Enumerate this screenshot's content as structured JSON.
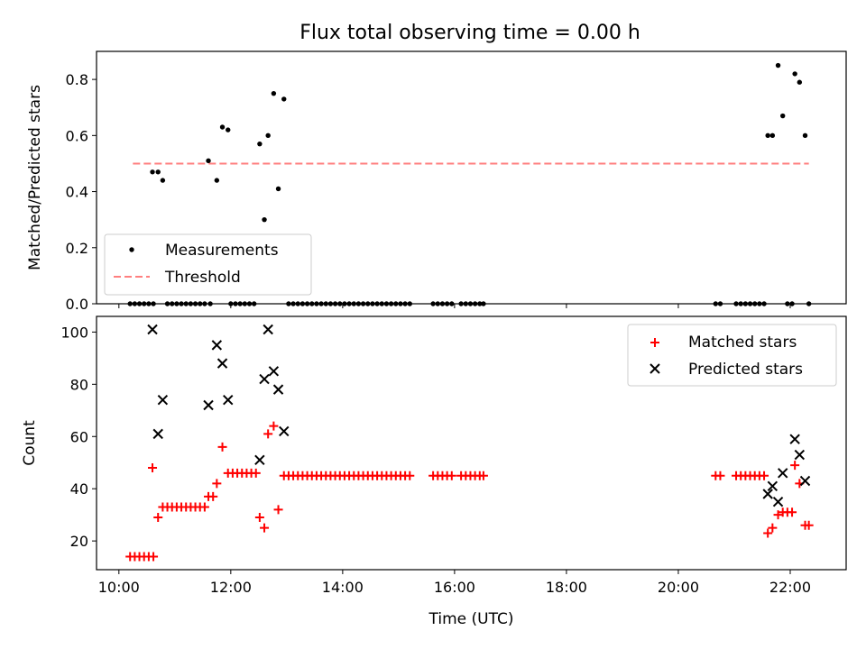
{
  "figure": {
    "title": "Flux total observing time = 0.00 h"
  },
  "chart_data": [
    {
      "type": "scatter",
      "ylabel": "Matched/Predicted stars",
      "xlim_hours": [
        9.6,
        23.0
      ],
      "ylim": [
        0,
        0.9
      ],
      "x_ticks": [
        "10:00",
        "12:00",
        "14:00",
        "16:00",
        "18:00",
        "20:00",
        "22:00"
      ],
      "y_ticks": [
        "0.0",
        "0.2",
        "0.4",
        "0.6",
        "0.8"
      ],
      "legend": {
        "position": "lower-left",
        "entries": [
          "Measurements",
          "Threshold"
        ]
      },
      "threshold": {
        "name": "Threshold",
        "value": 0.5,
        "x_range": [
          "10:15",
          "22:20"
        ],
        "color": "#ff7f7f"
      },
      "series": [
        {
          "name": "Measurements",
          "color": "#000000",
          "points": [
            [
              "10:12",
              0
            ],
            [
              "10:17",
              0
            ],
            [
              "10:22",
              0
            ],
            [
              "10:27",
              0
            ],
            [
              "10:32",
              0
            ],
            [
              "10:37",
              0
            ],
            [
              "10:36",
              0.47
            ],
            [
              "10:42",
              0.47
            ],
            [
              "10:47",
              0.44
            ],
            [
              "10:52",
              0
            ],
            [
              "10:57",
              0
            ],
            [
              "11:02",
              0
            ],
            [
              "11:07",
              0
            ],
            [
              "11:12",
              0
            ],
            [
              "11:17",
              0
            ],
            [
              "11:22",
              0
            ],
            [
              "11:27",
              0
            ],
            [
              "11:32",
              0
            ],
            [
              "11:36",
              0.51
            ],
            [
              "11:45",
              0.44
            ],
            [
              "11:51",
              0.63
            ],
            [
              "11:57",
              0.62
            ],
            [
              "11:38",
              0
            ],
            [
              "12:00",
              0
            ],
            [
              "12:05",
              0
            ],
            [
              "12:10",
              0
            ],
            [
              "12:15",
              0
            ],
            [
              "12:20",
              0
            ],
            [
              "12:25",
              0
            ],
            [
              "12:31",
              0.57
            ],
            [
              "12:36",
              0.3
            ],
            [
              "12:40",
              0.6
            ],
            [
              "12:46",
              0.75
            ],
            [
              "12:51",
              0.41
            ],
            [
              "12:57",
              0.73
            ],
            [
              "13:02",
              0
            ],
            [
              "13:07",
              0
            ],
            [
              "13:12",
              0
            ],
            [
              "13:17",
              0
            ],
            [
              "13:22",
              0
            ],
            [
              "13:27",
              0
            ],
            [
              "13:32",
              0
            ],
            [
              "13:37",
              0
            ],
            [
              "13:42",
              0
            ],
            [
              "13:47",
              0
            ],
            [
              "13:52",
              0
            ],
            [
              "13:57",
              0
            ],
            [
              "14:02",
              0
            ],
            [
              "14:07",
              0
            ],
            [
              "14:12",
              0
            ],
            [
              "14:17",
              0
            ],
            [
              "14:22",
              0
            ],
            [
              "14:27",
              0
            ],
            [
              "14:32",
              0
            ],
            [
              "14:37",
              0
            ],
            [
              "14:42",
              0
            ],
            [
              "14:47",
              0
            ],
            [
              "14:52",
              0
            ],
            [
              "14:57",
              0
            ],
            [
              "15:02",
              0
            ],
            [
              "15:07",
              0
            ],
            [
              "15:12",
              0
            ],
            [
              "15:37",
              0
            ],
            [
              "15:42",
              0
            ],
            [
              "15:47",
              0
            ],
            [
              "15:52",
              0
            ],
            [
              "15:57",
              0
            ],
            [
              "16:07",
              0
            ],
            [
              "16:12",
              0
            ],
            [
              "16:17",
              0
            ],
            [
              "16:22",
              0
            ],
            [
              "16:27",
              0
            ],
            [
              "16:31",
              0
            ],
            [
              "20:40",
              0
            ],
            [
              "20:45",
              0
            ],
            [
              "21:02",
              0
            ],
            [
              "21:07",
              0
            ],
            [
              "21:12",
              0
            ],
            [
              "21:17",
              0
            ],
            [
              "21:22",
              0
            ],
            [
              "21:27",
              0
            ],
            [
              "21:32",
              0
            ],
            [
              "21:36",
              0.6
            ],
            [
              "21:41",
              0.6
            ],
            [
              "21:47",
              0.85
            ],
            [
              "21:52",
              0.67
            ],
            [
              "21:57",
              0
            ],
            [
              "22:02",
              0
            ],
            [
              "22:05",
              0.82
            ],
            [
              "22:10",
              0.79
            ],
            [
              "22:16",
              0.6
            ],
            [
              "22:20",
              0
            ]
          ]
        }
      ]
    },
    {
      "type": "scatter",
      "xlabel": "Time (UTC)",
      "ylabel": "Count",
      "xlim_hours": [
        9.6,
        23.0
      ],
      "ylim": [
        9,
        106
      ],
      "x_ticks": [
        "10:00",
        "12:00",
        "14:00",
        "16:00",
        "18:00",
        "20:00",
        "22:00"
      ],
      "y_ticks": [
        "20",
        "40",
        "60",
        "80",
        "100"
      ],
      "legend": {
        "position": "top-right",
        "entries": [
          "Matched stars",
          "Predicted stars"
        ]
      },
      "series": [
        {
          "name": "Matched stars",
          "marker": "plus",
          "color": "#ff0000",
          "points": [
            [
              "10:12",
              14
            ],
            [
              "10:17",
              14
            ],
            [
              "10:22",
              14
            ],
            [
              "10:27",
              14
            ],
            [
              "10:32",
              14
            ],
            [
              "10:37",
              14
            ],
            [
              "10:36",
              48
            ],
            [
              "10:42",
              29
            ],
            [
              "10:47",
              33
            ],
            [
              "10:52",
              33
            ],
            [
              "10:57",
              33
            ],
            [
              "11:02",
              33
            ],
            [
              "11:07",
              33
            ],
            [
              "11:12",
              33
            ],
            [
              "11:17",
              33
            ],
            [
              "11:22",
              33
            ],
            [
              "11:27",
              33
            ],
            [
              "11:32",
              33
            ],
            [
              "11:36",
              37
            ],
            [
              "11:41",
              37
            ],
            [
              "11:45",
              42
            ],
            [
              "11:51",
              56
            ],
            [
              "11:57",
              46
            ],
            [
              "12:02",
              46
            ],
            [
              "12:07",
              46
            ],
            [
              "12:12",
              46
            ],
            [
              "12:17",
              46
            ],
            [
              "12:22",
              46
            ],
            [
              "12:27",
              46
            ],
            [
              "12:31",
              29
            ],
            [
              "12:36",
              25
            ],
            [
              "12:40",
              61
            ],
            [
              "12:46",
              64
            ],
            [
              "12:51",
              32
            ],
            [
              "12:57",
              45
            ],
            [
              "13:02",
              45
            ],
            [
              "13:07",
              45
            ],
            [
              "13:12",
              45
            ],
            [
              "13:17",
              45
            ],
            [
              "13:22",
              45
            ],
            [
              "13:27",
              45
            ],
            [
              "13:32",
              45
            ],
            [
              "13:37",
              45
            ],
            [
              "13:42",
              45
            ],
            [
              "13:47",
              45
            ],
            [
              "13:52",
              45
            ],
            [
              "13:57",
              45
            ],
            [
              "14:02",
              45
            ],
            [
              "14:07",
              45
            ],
            [
              "14:12",
              45
            ],
            [
              "14:17",
              45
            ],
            [
              "14:22",
              45
            ],
            [
              "14:27",
              45
            ],
            [
              "14:32",
              45
            ],
            [
              "14:37",
              45
            ],
            [
              "14:42",
              45
            ],
            [
              "14:47",
              45
            ],
            [
              "14:52",
              45
            ],
            [
              "14:57",
              45
            ],
            [
              "15:02",
              45
            ],
            [
              "15:07",
              45
            ],
            [
              "15:12",
              45
            ],
            [
              "15:37",
              45
            ],
            [
              "15:42",
              45
            ],
            [
              "15:47",
              45
            ],
            [
              "15:52",
              45
            ],
            [
              "15:57",
              45
            ],
            [
              "16:07",
              45
            ],
            [
              "16:12",
              45
            ],
            [
              "16:17",
              45
            ],
            [
              "16:22",
              45
            ],
            [
              "16:27",
              45
            ],
            [
              "16:31",
              45
            ],
            [
              "20:40",
              45
            ],
            [
              "20:45",
              45
            ],
            [
              "21:02",
              45
            ],
            [
              "21:07",
              45
            ],
            [
              "21:12",
              45
            ],
            [
              "21:17",
              45
            ],
            [
              "21:22",
              45
            ],
            [
              "21:27",
              45
            ],
            [
              "21:32",
              45
            ],
            [
              "21:36",
              23
            ],
            [
              "21:41",
              25
            ],
            [
              "21:47",
              30
            ],
            [
              "21:52",
              31
            ],
            [
              "21:57",
              31
            ],
            [
              "22:02",
              31
            ],
            [
              "22:05",
              49
            ],
            [
              "22:10",
              42
            ],
            [
              "22:16",
              26
            ],
            [
              "22:20",
              26
            ]
          ]
        },
        {
          "name": "Predicted stars",
          "marker": "x",
          "color": "#000000",
          "points": [
            [
              "10:36",
              101
            ],
            [
              "10:42",
              61
            ],
            [
              "10:47",
              74
            ],
            [
              "11:36",
              72
            ],
            [
              "11:45",
              95
            ],
            [
              "11:51",
              88
            ],
            [
              "11:57",
              74
            ],
            [
              "12:31",
              51
            ],
            [
              "12:36",
              82
            ],
            [
              "12:40",
              101
            ],
            [
              "12:46",
              85
            ],
            [
              "12:51",
              78
            ],
            [
              "12:57",
              62
            ],
            [
              "21:36",
              38
            ],
            [
              "21:41",
              41
            ],
            [
              "21:47",
              35
            ],
            [
              "21:52",
              46
            ],
            [
              "22:05",
              59
            ],
            [
              "22:10",
              53
            ],
            [
              "22:16",
              43
            ]
          ]
        }
      ]
    }
  ]
}
